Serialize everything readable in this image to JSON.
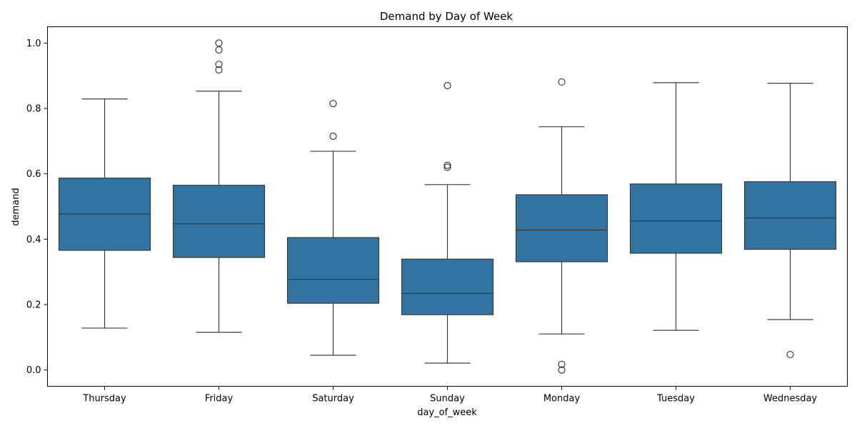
{
  "chart_data": {
    "type": "box",
    "title": "Demand by Day of Week",
    "xlabel": "day_of_week",
    "ylabel": "demand",
    "ylim": [
      -0.05,
      1.05
    ],
    "yticks": [
      0.0,
      0.2,
      0.4,
      0.6,
      0.8,
      1.0
    ],
    "ytick_labels": [
      "0.0",
      "0.2",
      "0.4",
      "0.6",
      "0.8",
      "1.0"
    ],
    "color": "#3274a1",
    "grid": false,
    "categories": [
      "Thursday",
      "Friday",
      "Saturday",
      "Sunday",
      "Monday",
      "Tuesday",
      "Wednesday"
    ],
    "boxes": [
      {
        "whislo": 0.128,
        "q1": 0.366,
        "med": 0.477,
        "q3": 0.587,
        "whishi": 0.829,
        "fliers": []
      },
      {
        "whislo": 0.115,
        "q1": 0.344,
        "med": 0.447,
        "q3": 0.565,
        "whishi": 0.853,
        "fliers": [
          0.918,
          0.935,
          0.979,
          1.0
        ]
      },
      {
        "whislo": 0.045,
        "q1": 0.204,
        "med": 0.277,
        "q3": 0.405,
        "whishi": 0.669,
        "fliers": [
          0.715,
          0.815
        ]
      },
      {
        "whislo": 0.021,
        "q1": 0.169,
        "med": 0.234,
        "q3": 0.339,
        "whishi": 0.567,
        "fliers": [
          0.62,
          0.626,
          0.87
        ]
      },
      {
        "whislo": 0.11,
        "q1": 0.331,
        "med": 0.428,
        "q3": 0.536,
        "whishi": 0.744,
        "fliers": [
          0.0,
          0.017,
          0.881
        ]
      },
      {
        "whislo": 0.121,
        "q1": 0.357,
        "med": 0.456,
        "q3": 0.569,
        "whishi": 0.879,
        "fliers": []
      },
      {
        "whislo": 0.154,
        "q1": 0.369,
        "med": 0.465,
        "q3": 0.576,
        "whishi": 0.877,
        "fliers": [
          0.047
        ]
      }
    ]
  }
}
